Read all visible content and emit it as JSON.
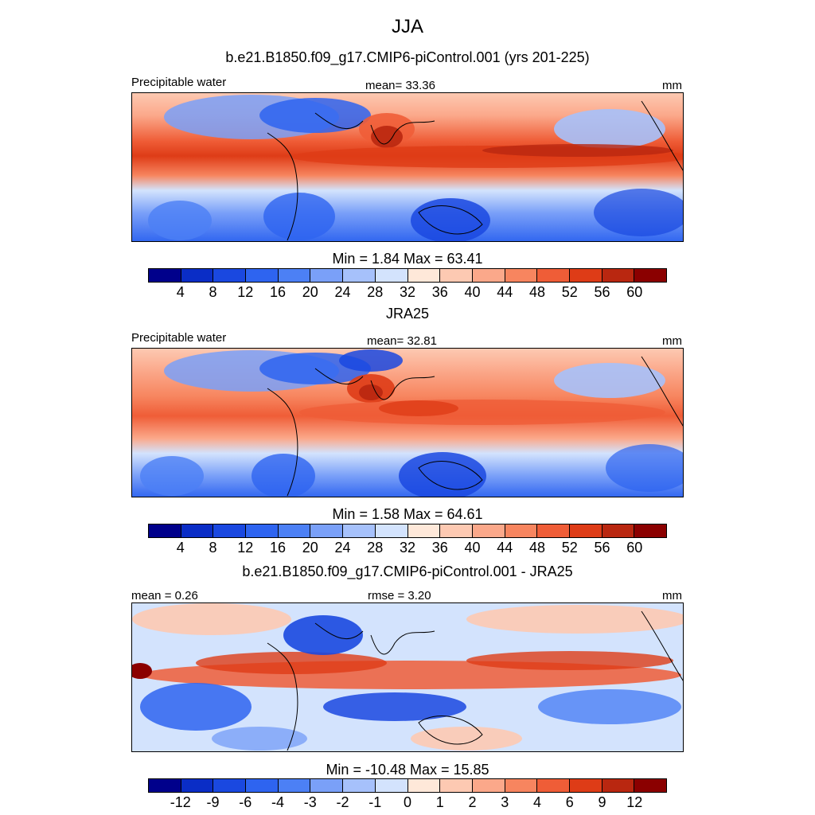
{
  "season": "JJA",
  "panel1": {
    "title": "b.e21.B1850.f09_g17.CMIP6-piControl.001 (yrs 201-225)",
    "left_label": "Precipitable water",
    "center_label": "mean=  33.36",
    "right_label": "mm",
    "minmax": "Min =   1.84 Max =  63.41"
  },
  "panel2": {
    "title": "JRA25",
    "left_label": "Precipitable water",
    "center_label": "mean=  32.81",
    "right_label": "mm",
    "minmax": "Min =   1.58 Max =  64.61"
  },
  "panel3": {
    "title": "b.e21.B1850.f09_g17.CMIP6-piControl.001 - JRA25",
    "left_label": "mean =   0.26",
    "center_label": "rmse =   3.20",
    "right_label": "mm",
    "minmax": "Min = -10.48 Max =  15.85"
  },
  "colorbar": {
    "colors": [
      "#00008b",
      "#0a2dc6",
      "#1a48e0",
      "#2e64f0",
      "#4c80f5",
      "#7aa0f8",
      "#a6c1fb",
      "#d3e3fd",
      "#fee8d9",
      "#fdc9b2",
      "#fba88a",
      "#f7855f",
      "#ef5d37",
      "#de3c17",
      "#b92710",
      "#8b0000"
    ],
    "field_labels": [
      "4",
      "8",
      "12",
      "16",
      "20",
      "24",
      "28",
      "32",
      "36",
      "40",
      "44",
      "48",
      "52",
      "56",
      "60"
    ],
    "diff_labels": [
      "-12",
      "-9",
      "-6",
      "-4",
      "-3",
      "-2",
      "-1",
      "0",
      "1",
      "2",
      "3",
      "4",
      "6",
      "9",
      "12"
    ]
  }
}
